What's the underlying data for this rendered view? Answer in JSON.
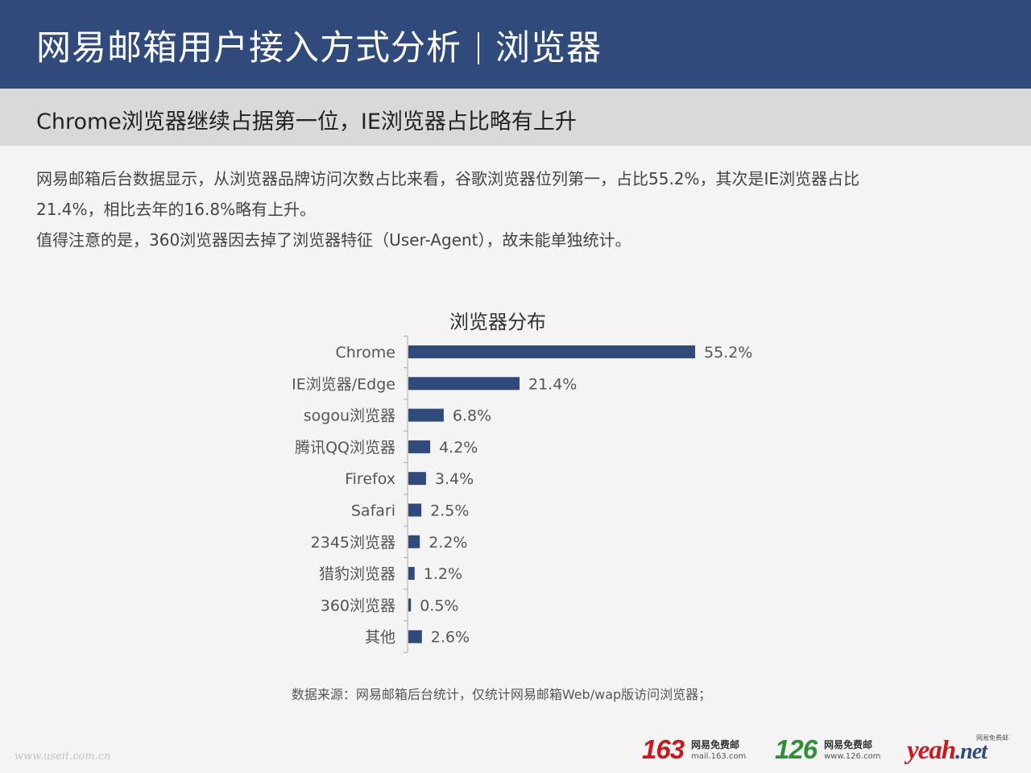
{
  "header": {
    "title_main": "网易邮箱用户接入方式分析",
    "title_section": "浏览器",
    "bg_color": "#2f4a7b"
  },
  "subtitle": "Chrome浏览器继续占据第一位，IE浏览器占比略有上升",
  "description": {
    "line1": "网易邮箱后台数据显示，从浏览器品牌访问次数占比来看，谷歌浏览器位列第一，占比55.2%，其次是IE浏览器占比",
    "line2": "21.4%，相比去年的16.8%略有上升。",
    "line3": "值得注意的是，360浏览器因去掉了浏览器特征（User-Agent），故未能单独统计。"
  },
  "chart_data": {
    "type": "bar",
    "orientation": "horizontal",
    "title": "浏览器分布",
    "categories": [
      "Chrome",
      "IE浏览器/Edge",
      "sogou浏览器",
      "腾讯QQ浏览器",
      "Firefox",
      "Safari",
      "2345浏览器",
      "猎豹浏览器",
      "360浏览器",
      "其他"
    ],
    "values": [
      55.2,
      21.4,
      6.8,
      4.2,
      3.4,
      2.5,
      2.2,
      1.2,
      0.5,
      2.6
    ],
    "value_labels": [
      "55.2%",
      "21.4%",
      "6.8%",
      "4.2%",
      "3.4%",
      "2.5%",
      "2.2%",
      "1.2%",
      "0.5%",
      "2.6%"
    ],
    "unit": "%",
    "bar_color": "#2f4a7b",
    "xlim": [
      0,
      55.2
    ],
    "grid": false,
    "legend": "none"
  },
  "source_note": "数据来源：网易邮箱后台统计，仅统计网易邮箱Web/wap版访问浏览器；",
  "watermark": "www.useit.com.cn",
  "logos": {
    "m163": {
      "number": "163",
      "name": "网易免费邮",
      "domain": "mail.163.com"
    },
    "m126": {
      "number": "126",
      "name": "网易免费邮",
      "domain": "www.126.com"
    },
    "yeah": {
      "word": "yeah",
      "suffix": ".net",
      "tag": "网易免费邮"
    }
  }
}
